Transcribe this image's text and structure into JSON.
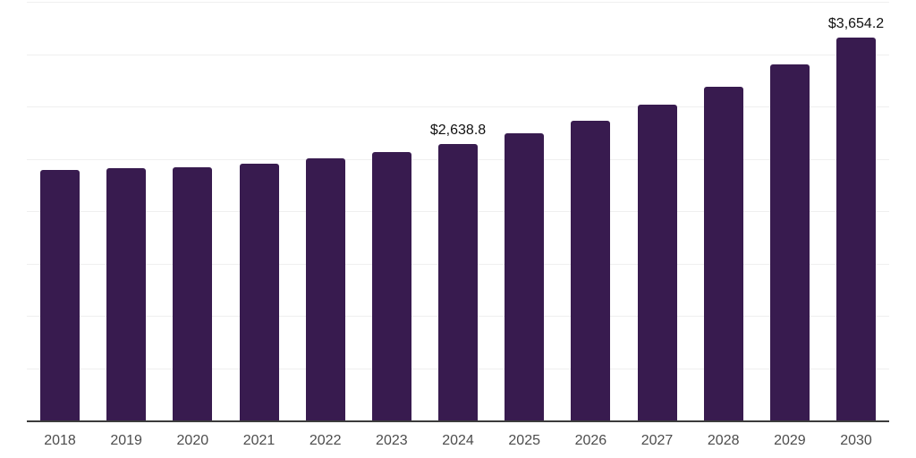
{
  "page": {
    "background": "#ffffff"
  },
  "chart_data": {
    "type": "bar",
    "title": "",
    "xlabel": "",
    "ylabel": "",
    "categories": [
      "2018",
      "2019",
      "2020",
      "2021",
      "2022",
      "2023",
      "2024",
      "2025",
      "2026",
      "2027",
      "2028",
      "2029",
      "2030"
    ],
    "values": [
      2390,
      2408,
      2422,
      2452,
      2503,
      2566,
      2638.8,
      2742,
      2866,
      3017,
      3192,
      3404,
      3654.2
    ],
    "data_labels": [
      {
        "category": "2024",
        "text": "$2,638.8"
      },
      {
        "category": "2030",
        "text": "$3,654.2"
      }
    ],
    "ylim": [
      0,
      4000
    ],
    "gridline_step": 500,
    "grid": "horizontal",
    "y_tick_labels_visible": false,
    "legend_position": "none",
    "colors": {
      "bar": "#381B4F",
      "gridline": "#efefef",
      "axis_line": "#3c3c3c",
      "tick_label": "#4d4d4d",
      "data_label": "#111111"
    }
  }
}
